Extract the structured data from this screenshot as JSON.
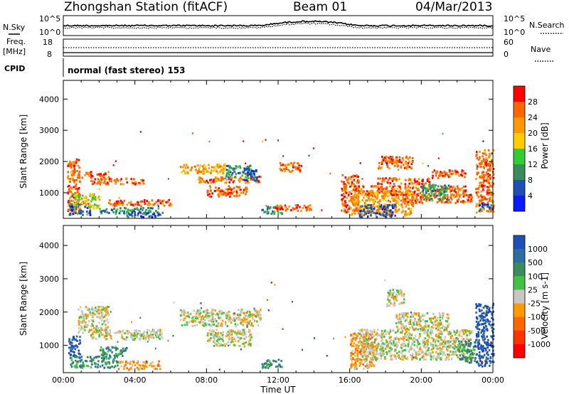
{
  "header": {
    "station": "Zhongshan Station (fitACF)",
    "beam": "Beam 01",
    "date": "04/Mar/2013"
  },
  "panels": {
    "sky": {
      "left_label": "N.Sky",
      "right_label": "N.Search",
      "left_ticks": [
        "10^5",
        "10^0"
      ],
      "right_ticks": [
        "10^5",
        "10^0"
      ]
    },
    "freq": {
      "left_label_line1": "Freq.",
      "left_label_line2": "[MHz]",
      "right_label": "Nave",
      "left_ticks": [
        "18",
        "8"
      ],
      "right_ticks": [
        "60",
        "0"
      ]
    },
    "cpid": {
      "label": "CPID",
      "text": "normal (fast stereo) 153"
    }
  },
  "chart_data": [
    {
      "type": "heatmap",
      "title": "",
      "quantity": "Power",
      "colorbar_label": "Power [dB]",
      "colorbar_ticks": [
        "28",
        "24",
        "20",
        "16",
        "12",
        "8",
        "4"
      ],
      "colorbar_colors": [
        "#ff0000",
        "#ff6600",
        "#ff9900",
        "#ffcc00",
        "#33cc33",
        "#3a8c5c",
        "#1f4fb4",
        "#0a1aff"
      ],
      "ylabel": "Slant Range [km]",
      "yticks": [
        "4000",
        "3000",
        "2000",
        "1000"
      ],
      "ylim": [
        180,
        4600
      ],
      "xlim": [
        0,
        24
      ],
      "features": [
        {
          "t0": 0.2,
          "t1": 0.9,
          "r0": 300,
          "r1": 2100,
          "level": 1
        },
        {
          "t0": 0.3,
          "t1": 1.5,
          "r0": 300,
          "r1": 700,
          "level": 6
        },
        {
          "t0": 0.5,
          "t1": 2.0,
          "r0": 500,
          "r1": 1000,
          "level": 3
        },
        {
          "t0": 1.0,
          "t1": 2.5,
          "r0": 1500,
          "r1": 1700,
          "level": 1
        },
        {
          "t0": 1.5,
          "t1": 4.5,
          "r0": 1300,
          "r1": 1500,
          "level": 1
        },
        {
          "t0": 2.0,
          "t1": 5.3,
          "r0": 350,
          "r1": 550,
          "level": 5
        },
        {
          "t0": 2.5,
          "t1": 6.0,
          "r0": 600,
          "r1": 800,
          "level": 1
        },
        {
          "t0": 3.5,
          "t1": 5.5,
          "r0": 250,
          "r1": 400,
          "level": 6
        },
        {
          "t0": 6.5,
          "t1": 9.0,
          "r0": 1650,
          "r1": 1950,
          "level": 2
        },
        {
          "t0": 7.5,
          "t1": 11.0,
          "r0": 1350,
          "r1": 1550,
          "level": 1
        },
        {
          "t0": 8.0,
          "t1": 10.2,
          "r0": 900,
          "r1": 1250,
          "level": 1
        },
        {
          "t0": 9.0,
          "t1": 10.5,
          "r0": 1500,
          "r1": 1900,
          "level": 5
        },
        {
          "t0": 10.0,
          "t1": 10.8,
          "r0": 1400,
          "r1": 1800,
          "level": 6
        },
        {
          "t0": 11.0,
          "t1": 12.2,
          "r0": 350,
          "r1": 600,
          "level": 5
        },
        {
          "t0": 11.8,
          "t1": 13.8,
          "r0": 450,
          "r1": 650,
          "level": 1
        },
        {
          "t0": 12.0,
          "t1": 13.3,
          "r0": 1700,
          "r1": 2000,
          "level": 1
        },
        {
          "t0": 15.5,
          "t1": 16.5,
          "r0": 400,
          "r1": 1600,
          "level": 1
        },
        {
          "t0": 16.0,
          "t1": 19.5,
          "r0": 300,
          "r1": 1100,
          "level": 2
        },
        {
          "t0": 16.5,
          "t1": 18.5,
          "r0": 250,
          "r1": 650,
          "level": 6
        },
        {
          "t0": 16.2,
          "t1": 22.5,
          "r0": 950,
          "r1": 1250,
          "level": 1
        },
        {
          "t0": 17.5,
          "t1": 20.5,
          "r0": 1300,
          "r1": 1500,
          "level": 1
        },
        {
          "t0": 19.0,
          "t1": 22.8,
          "r0": 700,
          "r1": 1000,
          "level": 1
        },
        {
          "t0": 20.0,
          "t1": 21.5,
          "r0": 800,
          "r1": 1300,
          "level": 5
        },
        {
          "t0": 20.5,
          "t1": 22.5,
          "r0": 1500,
          "r1": 1750,
          "level": 1
        },
        {
          "t0": 17.5,
          "t1": 19.5,
          "r0": 1800,
          "r1": 2200,
          "level": 1
        },
        {
          "t0": 23.0,
          "t1": 24.0,
          "r0": 400,
          "r1": 2400,
          "level": 1
        },
        {
          "t0": 23.2,
          "t1": 24.0,
          "r0": 450,
          "r1": 700,
          "level": 6
        }
      ]
    },
    {
      "type": "heatmap",
      "title": "",
      "quantity": "Velocity",
      "colorbar_label": "Velocity [m s-1]",
      "colorbar_ticks": [
        "1000",
        "500",
        "100",
        "25",
        "-25",
        "-100",
        "-500",
        "-1000"
      ],
      "colorbar_colors": [
        "#1f4fb4",
        "#2f6fa0",
        "#3a8c5c",
        "#44c044",
        "#c8c8c0",
        "#ff9900",
        "#ff6600",
        "#ff3300",
        "#ff0000"
      ],
      "ylabel": "Slant Range [km]",
      "yticks": [
        "4000",
        "3000",
        "2000",
        "1000"
      ],
      "ylim": [
        180,
        4600
      ],
      "xlim": [
        0,
        24
      ],
      "features": [
        {
          "t0": 0.2,
          "t1": 0.9,
          "r0": 700,
          "r1": 1300,
          "level": 0
        },
        {
          "t0": 0.3,
          "t1": 3.0,
          "r0": 350,
          "r1": 700,
          "level": 2
        },
        {
          "t0": 0.8,
          "t1": 2.5,
          "r0": 1400,
          "r1": 2200,
          "level": 4
        },
        {
          "t0": 1.5,
          "t1": 5.5,
          "r0": 1200,
          "r1": 1500,
          "level": 4
        },
        {
          "t0": 3.0,
          "t1": 5.4,
          "r0": 300,
          "r1": 550,
          "level": 5
        },
        {
          "t0": 2.0,
          "t1": 3.5,
          "r0": 700,
          "r1": 1000,
          "level": 2
        },
        {
          "t0": 6.5,
          "t1": 11.0,
          "r0": 1600,
          "r1": 2100,
          "level": 4
        },
        {
          "t0": 8.0,
          "t1": 10.5,
          "r0": 1000,
          "r1": 1500,
          "level": 4
        },
        {
          "t0": 11.0,
          "t1": 12.2,
          "r0": 350,
          "r1": 600,
          "level": 2
        },
        {
          "t0": 16.0,
          "t1": 17.5,
          "r0": 300,
          "r1": 1400,
          "level": 5
        },
        {
          "t0": 16.5,
          "t1": 22.8,
          "r0": 600,
          "r1": 1500,
          "level": 4
        },
        {
          "t0": 18.5,
          "t1": 21.5,
          "r0": 1500,
          "r1": 2000,
          "level": 4
        },
        {
          "t0": 18.0,
          "t1": 19.0,
          "r0": 2200,
          "r1": 2700,
          "level": 4
        },
        {
          "t0": 22.0,
          "t1": 23.0,
          "r0": 500,
          "r1": 1200,
          "level": 2
        },
        {
          "t0": 23.0,
          "t1": 24.0,
          "r0": 400,
          "r1": 2300,
          "level": 0
        }
      ]
    }
  ],
  "xaxis": {
    "label": "Time UT",
    "ticks": [
      "00:00",
      "04:00",
      "08:00",
      "12:00",
      "16:00",
      "20:00",
      "00:00"
    ]
  }
}
